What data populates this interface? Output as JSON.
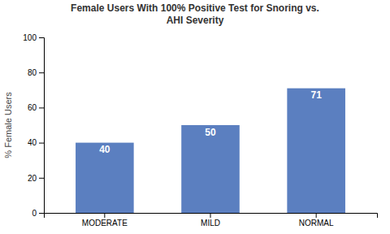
{
  "chart_data": {
    "type": "bar",
    "title": "Female Users With 100% Positive Test for Snoring vs.\nAHI Severity",
    "ylabel": "% Female Users",
    "categories": [
      "MODERATE",
      "MILD",
      "NORMAL"
    ],
    "values": [
      40,
      50,
      71
    ],
    "color": "#5B7FC0",
    "ylim": [
      0,
      100
    ],
    "yticks": [
      0,
      20,
      40,
      60,
      80,
      100
    ],
    "grid": false,
    "data_labels": true
  }
}
